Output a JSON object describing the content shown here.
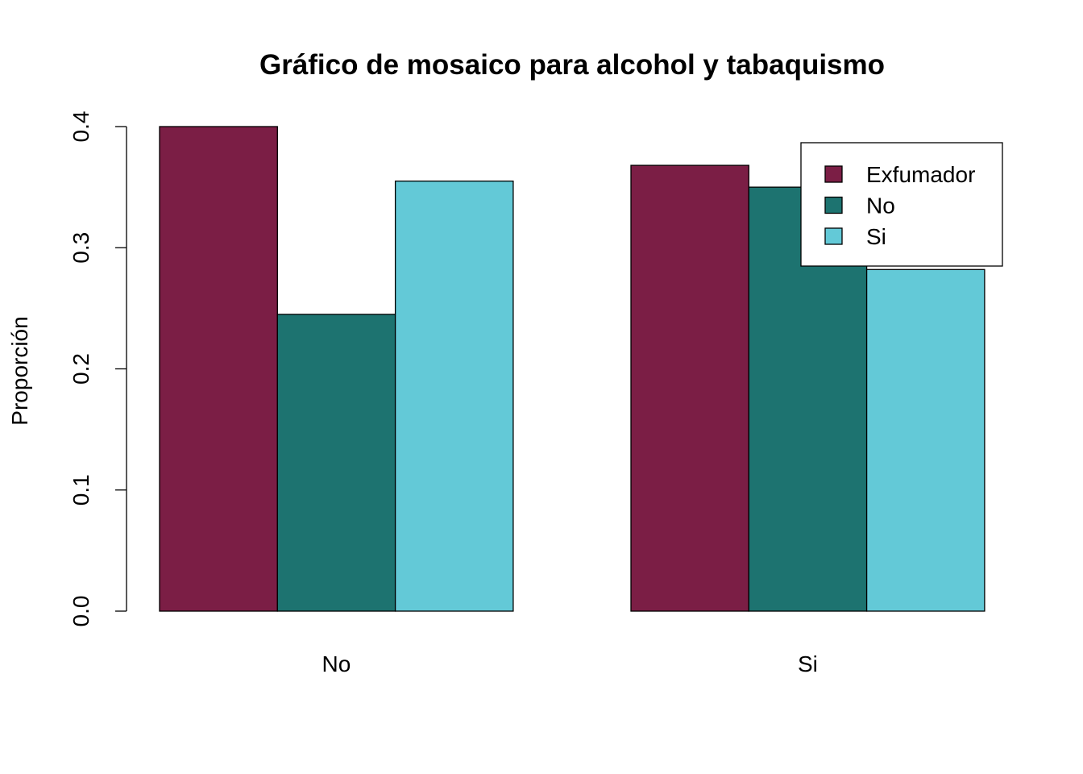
{
  "chart_data": {
    "type": "bar",
    "title": "Gráfico de mosaico para alcohol y tabaquismo",
    "xlabel": "",
    "ylabel": "Proporción",
    "ylim": [
      0,
      0.4
    ],
    "yticks": [
      "0.0",
      "0.1",
      "0.2",
      "0.3",
      "0.4"
    ],
    "categories": [
      "No",
      "Si"
    ],
    "series": [
      {
        "name": "Exfumador",
        "color": "#7B1E45",
        "values": [
          0.4,
          0.368
        ]
      },
      {
        "name": "No",
        "color": "#1D7370",
        "values": [
          0.245,
          0.35
        ]
      },
      {
        "name": "Si",
        "color": "#63C9D7",
        "values": [
          0.355,
          0.282
        ]
      }
    ],
    "grid": false,
    "legend_position": "top-right"
  }
}
